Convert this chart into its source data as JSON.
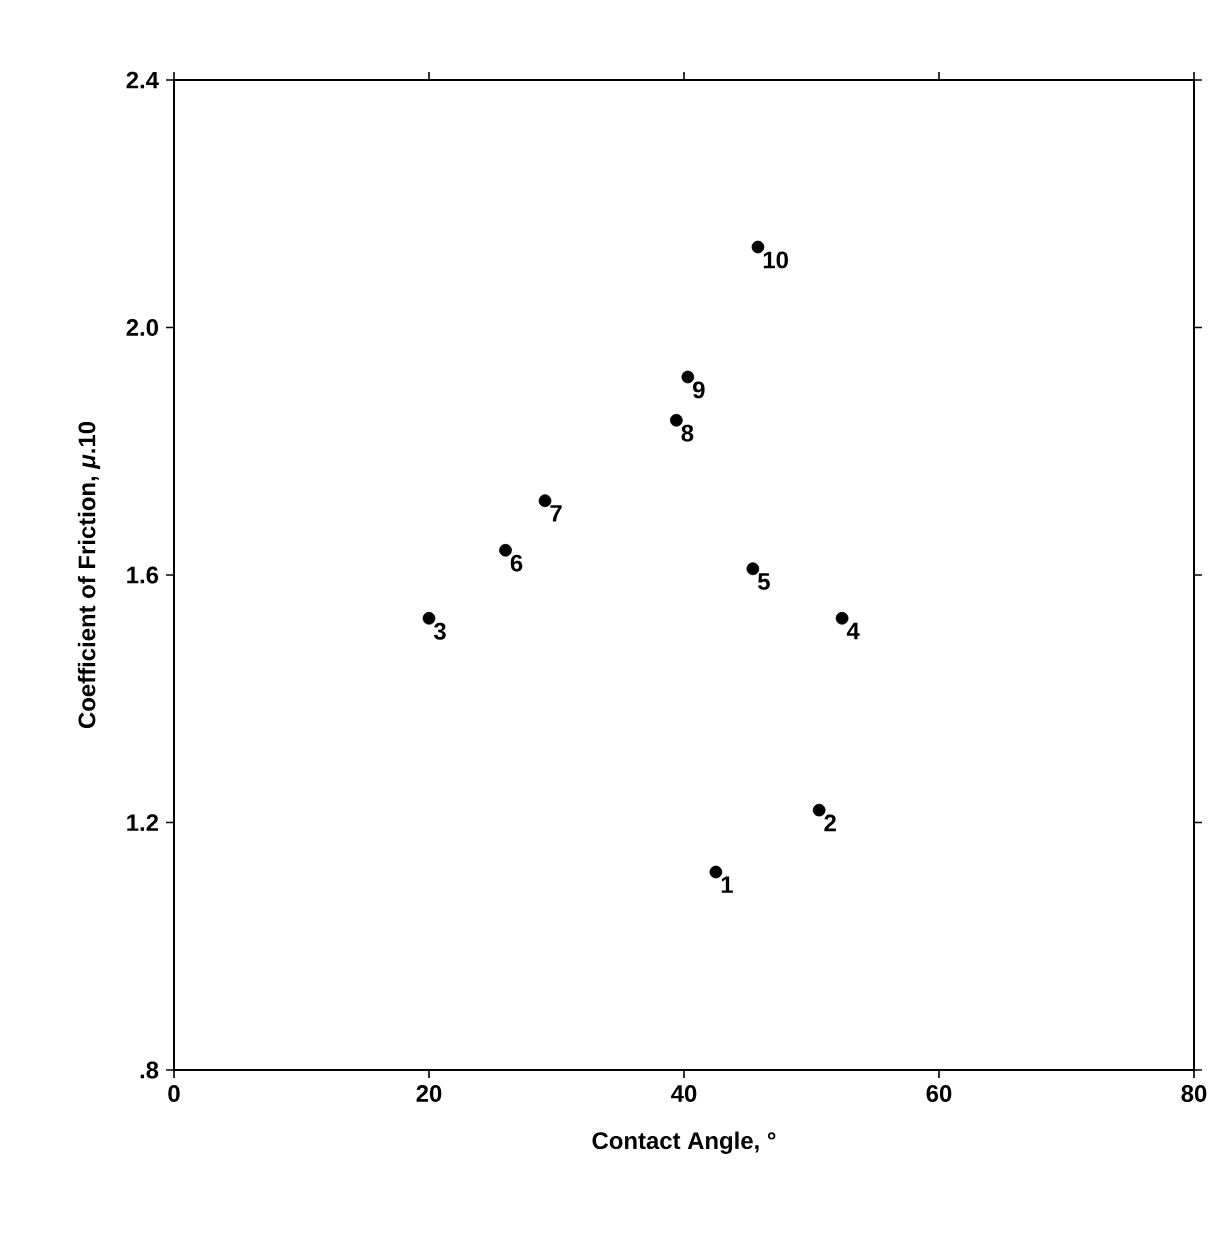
{
  "chart_data": {
    "type": "scatter",
    "xlabel": "Contact Angle, °",
    "ylabel": "Coefficient of Friction, *μ*.10",
    "xlim": [
      0,
      80
    ],
    "ylim": [
      0.8,
      2.4
    ],
    "xticks": [
      0,
      20,
      40,
      60,
      80
    ],
    "yticks": [
      {
        "value": 0.8,
        "label": ".8"
      },
      {
        "value": 1.2,
        "label": "1.2"
      },
      {
        "value": 1.6,
        "label": "1.6"
      },
      {
        "value": 2.0,
        "label": "2.0"
      },
      {
        "value": 2.4,
        "label": "2.4"
      }
    ],
    "marker": "circle",
    "grid": false,
    "series": [
      {
        "color": "#000000",
        "x": [
          42.5,
          50.6,
          20.0,
          52.4,
          45.4,
          26.0,
          29.1,
          39.4,
          40.3,
          45.8
        ],
        "values": [
          1.12,
          1.22,
          1.53,
          1.53,
          1.61,
          1.64,
          1.72,
          1.85,
          1.92,
          2.13
        ]
      }
    ],
    "annotations": [
      {
        "text": "1",
        "x": 42.5,
        "y": 1.12
      },
      {
        "text": "2",
        "x": 50.6,
        "y": 1.22
      },
      {
        "text": "3",
        "x": 20.0,
        "y": 1.53
      },
      {
        "text": "4",
        "x": 52.4,
        "y": 1.53
      },
      {
        "text": "5",
        "x": 45.4,
        "y": 1.61
      },
      {
        "text": "6",
        "x": 26.0,
        "y": 1.64
      },
      {
        "text": "7",
        "x": 29.1,
        "y": 1.72
      },
      {
        "text": "8",
        "x": 39.4,
        "y": 1.85
      },
      {
        "text": "9",
        "x": 40.3,
        "y": 1.92
      },
      {
        "text": "10",
        "x": 45.8,
        "y": 2.13
      }
    ]
  }
}
